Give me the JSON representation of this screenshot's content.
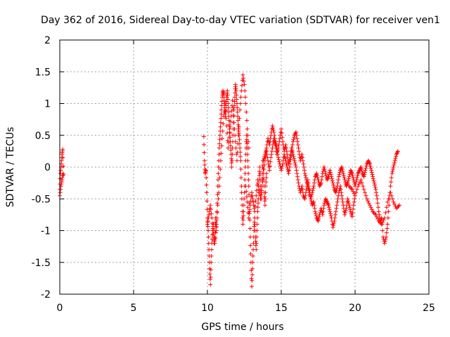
{
  "chart_data": {
    "type": "scatter",
    "title": "Day 362 of 2016, Sidereal Day-to-day VTEC variation (SDTVAR) for receiver ven1",
    "xlabel": "GPS time / hours",
    "ylabel": "SDTVAR / TECUs",
    "xlim": [
      0,
      25
    ],
    "ylim": [
      -2,
      2
    ],
    "x_ticks": [
      "0",
      "5",
      "10",
      "15",
      "20",
      "25"
    ],
    "y_ticks": [
      "-2",
      "-1.5",
      "-1",
      "-0.5",
      "0",
      "0.5",
      "1",
      "1.5",
      "2"
    ],
    "grid": true,
    "marker": "plus",
    "color": "#ff0000",
    "series": [
      {
        "name": "ven1",
        "segments": [
          {
            "x": [
              0.0,
              0.05,
              0.1,
              0.15,
              0.2,
              0.25
            ],
            "y": [
              -0.35,
              -0.1,
              0.05,
              0.2,
              0.28,
              -0.12
            ]
          },
          {
            "x": [
              0.0,
              0.08,
              0.15,
              0.22
            ],
            "y": [
              -0.45,
              -0.3,
              -0.2,
              -0.1
            ]
          },
          {
            "x": [
              9.75,
              9.8,
              9.85,
              9.9,
              9.95,
              10.0,
              10.05,
              10.1,
              10.15,
              10.2,
              10.25,
              10.3,
              10.35,
              10.4,
              10.45,
              10.5,
              10.55,
              10.6,
              10.65,
              10.7,
              10.75,
              10.8,
              10.85,
              10.9,
              10.95,
              11.0,
              11.05,
              11.1,
              11.15,
              11.2,
              11.25,
              11.3,
              11.35,
              11.4,
              11.45,
              11.5,
              11.55,
              11.6,
              11.65,
              11.7,
              11.75,
              11.8,
              11.85,
              11.9,
              11.95,
              12.0,
              12.05,
              12.1,
              12.15,
              12.2,
              12.25,
              12.3,
              12.35,
              12.4,
              12.45,
              12.5,
              12.55,
              12.6,
              12.65,
              12.7,
              12.75,
              12.8,
              12.85,
              12.9,
              12.95,
              13.0,
              13.05,
              13.1,
              13.15,
              13.2,
              13.25,
              13.3,
              13.35,
              13.4,
              13.45,
              13.5,
              13.55,
              13.6,
              13.65,
              13.7,
              13.75,
              13.8,
              13.85,
              13.9,
              13.95,
              14.0
            ],
            "y": [
              0.48,
              0.1,
              -0.1,
              -0.05,
              -0.4,
              -0.8,
              -1.0,
              -1.3,
              -1.6,
              -1.85,
              -1.5,
              -1.2,
              -1.0,
              -0.9,
              -1.2,
              -1.1,
              -0.8,
              -1.0,
              -0.7,
              -0.3,
              0.0,
              0.3,
              0.5,
              0.7,
              0.9,
              1.1,
              1.2,
              1.15,
              1.0,
              0.8,
              0.9,
              1.1,
              1.2,
              1.0,
              0.8,
              0.6,
              0.4,
              0.2,
              0.0,
              0.3,
              0.6,
              0.9,
              1.1,
              1.3,
              1.2,
              1.0,
              0.8,
              0.6,
              0.5,
              0.3,
              0.1,
              -0.3,
              -0.6,
              -0.9,
              -0.7,
              -0.4,
              -0.1,
              0.2,
              0.5,
              0.3,
              0.0,
              -0.3,
              -0.7,
              -1.1,
              -1.5,
              -1.88,
              -1.6,
              -1.3,
              -1.0,
              -0.8,
              -1.1,
              -1.3,
              -1.0,
              -0.7,
              -0.5,
              -0.2,
              0.0,
              -0.3,
              -0.5,
              -0.2,
              0.1,
              -0.1,
              -0.4,
              -0.6,
              -0.3,
              -0.1
            ]
          },
          {
            "x": [
              10.0,
              10.1,
              10.2,
              10.3,
              10.4,
              10.5,
              10.6,
              10.7,
              10.8,
              10.9,
              11.0,
              11.1,
              11.2,
              11.3,
              11.4,
              11.5,
              11.6,
              11.7,
              11.8,
              11.9,
              12.0,
              12.1,
              12.2,
              12.3,
              12.4,
              12.5,
              12.6,
              12.7,
              12.8
            ],
            "y": [
              -0.9,
              -0.75,
              -0.6,
              -0.8,
              -1.05,
              -1.2,
              -0.95,
              -0.6,
              -0.3,
              0.1,
              0.45,
              0.8,
              1.0,
              0.65,
              0.3,
              0.55,
              0.8,
              1.05,
              0.7,
              0.4,
              0.1,
              0.5,
              0.9,
              1.2,
              1.45,
              1.3,
              1.0,
              0.6,
              0.3
            ]
          },
          {
            "x": [
              12.6,
              12.7,
              12.8,
              12.9,
              13.0,
              13.1,
              13.2,
              13.3,
              13.4,
              13.5,
              13.6,
              13.7,
              13.8,
              13.9,
              14.0,
              14.1,
              14.2,
              14.3,
              14.4,
              14.5,
              14.6,
              14.7,
              14.8,
              14.9,
              15.0,
              15.1,
              15.2,
              15.3,
              15.4,
              15.5,
              15.6,
              15.7,
              15.8,
              15.9,
              16.0,
              16.1,
              16.2,
              16.3,
              16.4,
              16.5,
              16.6,
              16.7,
              16.8,
              16.9,
              17.0,
              17.1,
              17.2,
              17.3,
              17.4,
              17.5,
              17.6,
              17.7,
              17.8,
              17.9,
              18.0,
              18.1,
              18.2,
              18.3,
              18.4,
              18.5,
              18.6,
              18.7,
              18.8,
              18.9,
              19.0,
              19.1,
              19.2,
              19.3,
              19.4,
              19.5,
              19.6,
              19.7,
              19.8,
              19.9,
              20.0
            ],
            "y": [
              -0.3,
              -0.55,
              -0.8,
              -0.6,
              -0.4,
              -0.55,
              -0.7,
              -0.45,
              -0.2,
              -0.35,
              -0.5,
              -0.3,
              -0.1,
              0.1,
              0.25,
              0.1,
              -0.05,
              0.15,
              0.3,
              0.45,
              0.35,
              0.2,
              0.3,
              0.45,
              0.6,
              0.4,
              0.25,
              0.35,
              0.2,
              0.05,
              0.15,
              0.3,
              0.2,
              0.1,
              0.0,
              -0.15,
              -0.3,
              -0.4,
              -0.3,
              -0.45,
              -0.5,
              -0.35,
              -0.2,
              -0.35,
              -0.5,
              -0.6,
              -0.55,
              -0.7,
              -0.8,
              -0.85,
              -0.75,
              -0.65,
              -0.75,
              -0.6,
              -0.5,
              -0.55,
              -0.6,
              -0.7,
              -0.8,
              -0.95,
              -0.85,
              -0.7,
              -0.55,
              -0.4,
              -0.3,
              -0.45,
              -0.6,
              -0.75,
              -0.65,
              -0.5,
              -0.6,
              -0.7,
              -0.78,
              -0.6,
              -0.45
            ]
          },
          {
            "x": [
              13.8,
              13.9,
              14.0,
              14.1,
              14.2,
              14.3,
              14.4,
              14.5,
              14.6,
              14.7,
              14.8,
              14.9,
              15.0,
              15.1,
              15.2,
              15.3,
              15.4,
              15.5,
              15.6,
              15.7,
              15.8,
              15.9,
              16.0,
              16.1,
              16.2,
              16.3,
              16.4,
              16.5,
              16.6,
              16.7,
              16.8,
              16.9,
              17.0,
              17.1,
              17.2,
              17.3,
              17.4,
              17.5,
              17.6,
              17.7,
              17.8,
              17.9,
              18.0,
              18.1,
              18.2,
              18.3,
              18.4,
              18.5,
              18.6,
              18.7,
              18.8,
              18.9,
              19.0,
              19.1,
              19.2,
              19.3,
              19.4,
              19.5,
              19.6,
              19.7,
              19.8,
              19.9,
              20.0,
              20.1,
              20.2,
              20.3,
              20.4,
              20.5,
              20.6,
              20.7,
              20.8,
              20.9,
              21.0,
              21.1,
              21.2,
              21.3,
              21.4,
              21.5,
              21.6,
              21.7,
              21.8,
              21.9,
              22.0,
              22.1,
              22.2,
              22.3,
              22.4,
              22.5,
              22.6,
              22.7,
              22.8,
              22.9
            ],
            "y": [
              0.1,
              0.2,
              0.3,
              0.45,
              0.35,
              0.5,
              0.65,
              0.55,
              0.4,
              0.3,
              0.15,
              0.05,
              -0.05,
              0.05,
              0.2,
              0.1,
              0.0,
              -0.1,
              0.05,
              0.25,
              0.4,
              0.5,
              0.55,
              0.4,
              0.25,
              0.1,
              0.2,
              0.05,
              -0.1,
              -0.2,
              -0.3,
              -0.4,
              -0.5,
              -0.4,
              -0.3,
              -0.15,
              -0.1,
              -0.2,
              -0.3,
              -0.25,
              -0.1,
              0.0,
              -0.1,
              -0.2,
              -0.15,
              -0.05,
              -0.15,
              -0.25,
              -0.35,
              -0.4,
              -0.3,
              -0.15,
              -0.05,
              0.0,
              -0.1,
              -0.2,
              -0.3,
              -0.25,
              -0.15,
              -0.05,
              -0.1,
              -0.2,
              -0.3,
              -0.2,
              -0.1,
              -0.05,
              0.0,
              -0.1,
              -0.15,
              -0.05,
              0.05,
              0.1,
              0.05,
              -0.05,
              -0.15,
              -0.25,
              -0.35,
              -0.5,
              -0.7,
              -0.85,
              -0.8,
              -1.1,
              -1.2,
              -1.1,
              -0.9,
              -0.6,
              -0.3,
              -0.1,
              0.0,
              0.1,
              0.2,
              0.25
            ]
          },
          {
            "x": [
              19.6,
              19.8,
              20.0,
              20.2,
              20.4,
              20.6,
              20.8,
              21.0,
              21.2,
              21.4,
              21.6,
              21.8,
              22.0,
              22.2,
              22.4,
              22.6,
              22.8,
              23.0
            ],
            "y": [
              -0.3,
              -0.35,
              -0.45,
              -0.3,
              -0.2,
              -0.35,
              -0.5,
              -0.6,
              -0.7,
              -0.75,
              -0.85,
              -0.9,
              -0.8,
              -0.55,
              -0.4,
              -0.55,
              -0.65,
              -0.6
            ]
          }
        ]
      }
    ]
  }
}
